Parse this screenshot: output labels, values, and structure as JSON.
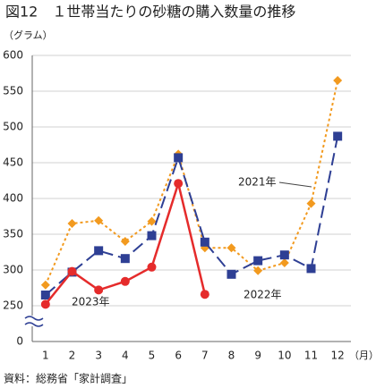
{
  "chart_data": {
    "type": "line",
    "title": "図12　１世帯当たりの砂糖の購入数量の推移",
    "y_label": "（グラム）",
    "x_label": "（月）",
    "source": "資料：総務省「家計調査」",
    "categories": [
      "1",
      "2",
      "3",
      "4",
      "5",
      "6",
      "7",
      "8",
      "9",
      "10",
      "11",
      "12"
    ],
    "series": [
      {
        "name": "2021年",
        "color": "#2e3f94",
        "marker": "square",
        "dash": "14 6",
        "values": [
          265,
          297,
          327,
          316,
          348,
          457,
          339,
          294,
          313,
          321,
          302,
          487
        ]
      },
      {
        "name": "2022年",
        "color": "#f29a1f",
        "marker": "diamond",
        "dash": "3 3",
        "values": [
          279,
          365,
          369,
          340,
          368,
          462,
          331,
          331,
          299,
          310,
          393,
          565
        ]
      },
      {
        "name": "2023年",
        "color": "#e52b2b",
        "marker": "circle",
        "dash": "",
        "values": [
          252,
          298,
          272,
          284,
          304,
          421,
          266,
          null,
          null,
          null,
          null,
          null
        ]
      }
    ],
    "ylim": [
      0,
      600
    ],
    "yticks": [
      0,
      250,
      300,
      350,
      400,
      450,
      500,
      550,
      600
    ],
    "axis_break": true,
    "grid": true
  }
}
